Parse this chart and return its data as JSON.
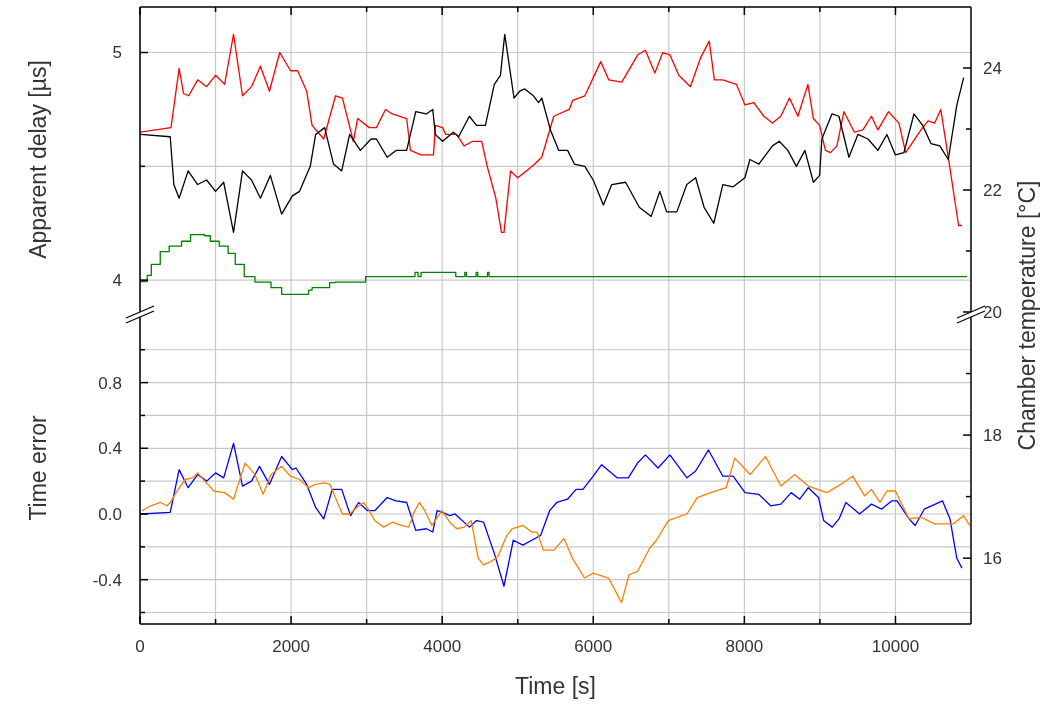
{
  "chart_data": [
    {
      "type": "line",
      "ylabel": "Apparent delay [µs]",
      "y2label": "Chamber temperature [°C]",
      "xlim": [
        0,
        11000
      ],
      "xticks": [
        0,
        {
          "value": 1000,
          "label": null
        },
        2000,
        {
          "value": 3000,
          "label": null
        },
        4000,
        {
          "value": 5000,
          "label": null
        },
        6000,
        {
          "value": 7000,
          "label": null
        },
        8000,
        {
          "value": 9000,
          "label": null
        },
        10000
      ],
      "ylim": [
        3.86,
        5.2
      ],
      "yticks": [
        4,
        {
          "value": 4.5,
          "label": null
        },
        5
      ],
      "y2lim": [
        20,
        25
      ],
      "y2ticks": [
        20,
        {
          "value": 21,
          "label": null
        },
        22,
        {
          "value": 23,
          "label": null
        },
        24
      ],
      "grid": true,
      "tick_labels": "y",
      "series": [
        {
          "color": "#ff0000",
          "x": [
            7,
            410,
            518,
            576,
            645,
            763,
            882,
            1000,
            1120,
            1238,
            1357,
            1476,
            1594,
            1713,
            1850,
            1993,
            2087,
            2206,
            2278,
            2432,
            2588,
            2680,
            2824,
            2881,
            3035,
            3129,
            3250,
            3341,
            3530,
            3580,
            3720,
            3885,
            3910,
            4005,
            4047,
            4190,
            4290,
            4405,
            4523,
            4596,
            4710,
            4785,
            4818,
            4905,
            5000,
            5116,
            5225,
            5318,
            5477,
            5682,
            5728,
            5888,
            6099,
            6205,
            6377,
            6589,
            6690,
            6815,
            6920,
            7014,
            7132,
            7286,
            7424,
            7535,
            7603,
            7715,
            7896,
            8007,
            8126,
            8258,
            8372,
            8483,
            8597,
            8709,
            8841,
            8914,
            8996,
            9073,
            9140,
            9225,
            9318,
            9457,
            9569,
            9682,
            9768,
            9908,
            10046,
            10135,
            10338,
            10431,
            10519,
            10600,
            10722,
            10836,
            10880
          ],
          "values": [
            4.65,
            4.67,
            4.93,
            4.82,
            4.81,
            4.88,
            4.85,
            4.9,
            4.86,
            5.08,
            4.81,
            4.85,
            4.94,
            4.83,
            5.0,
            4.92,
            4.92,
            4.83,
            4.68,
            4.62,
            4.81,
            4.8,
            4.61,
            4.71,
            4.67,
            4.67,
            4.75,
            4.73,
            4.71,
            4.57,
            4.55,
            4.55,
            4.68,
            4.67,
            4.64,
            4.64,
            4.59,
            4.61,
            4.61,
            4.5,
            4.36,
            4.21,
            4.21,
            4.48,
            4.45,
            4.48,
            4.51,
            4.54,
            4.72,
            4.75,
            4.79,
            4.81,
            4.96,
            4.88,
            4.87,
            4.99,
            5.01,
            4.91,
            5.0,
            4.99,
            4.9,
            4.85,
            4.98,
            5.05,
            4.88,
            4.88,
            4.86,
            4.77,
            4.78,
            4.72,
            4.69,
            4.72,
            4.8,
            4.72,
            4.86,
            4.71,
            4.68,
            4.57,
            4.56,
            4.59,
            4.74,
            4.65,
            4.66,
            4.72,
            4.66,
            4.74,
            4.69,
            4.56,
            4.66,
            4.7,
            4.69,
            4.75,
            4.49,
            4.24,
            4.24
          ]
        },
        {
          "color": "#000000",
          "x": [
            7,
            400,
            448,
            518,
            637,
            763,
            882,
            1000,
            1108,
            1238,
            1357,
            1476,
            1594,
            1725,
            1875,
            2017,
            2112,
            2254,
            2325,
            2444,
            2562,
            2670,
            2775,
            2917,
            3058,
            3130,
            3272,
            3390,
            3530,
            3650,
            3790,
            3875,
            3910,
            4005,
            4147,
            4218,
            4360,
            4454,
            4572,
            4690,
            4771,
            4828,
            4951,
            5026,
            5093,
            5208,
            5276,
            5318,
            5433,
            5543,
            5660,
            5750,
            5888,
            5999,
            6134,
            6245,
            6428,
            6609,
            6767,
            6881,
            6971,
            7106,
            7238,
            7355,
            7467,
            7595,
            7715,
            7852,
            8007,
            8073,
            8192,
            8372,
            8462,
            8576,
            8689,
            8801,
            8914,
            8996,
            9026,
            9159,
            9252,
            9384,
            9503,
            9636,
            9768,
            9887,
            9999,
            10112,
            10245,
            10360,
            10470,
            10587,
            10699,
            10813,
            10903
          ],
          "values": [
            4.64,
            4.63,
            4.42,
            4.36,
            4.48,
            4.42,
            4.44,
            4.39,
            4.43,
            4.21,
            4.48,
            4.44,
            4.36,
            4.46,
            4.29,
            4.37,
            4.39,
            4.5,
            4.64,
            4.67,
            4.51,
            4.48,
            4.64,
            4.57,
            4.62,
            4.62,
            4.54,
            4.57,
            4.57,
            4.74,
            4.73,
            4.75,
            4.64,
            4.61,
            4.65,
            4.63,
            4.72,
            4.68,
            4.68,
            4.86,
            4.9,
            5.08,
            4.8,
            4.83,
            4.84,
            4.81,
            4.78,
            4.8,
            4.66,
            4.57,
            4.57,
            4.51,
            4.5,
            4.44,
            4.33,
            4.42,
            4.43,
            4.32,
            4.28,
            4.39,
            4.3,
            4.3,
            4.42,
            4.45,
            4.32,
            4.25,
            4.42,
            4.41,
            4.45,
            4.53,
            4.51,
            4.59,
            4.61,
            4.57,
            4.5,
            4.57,
            4.43,
            4.46,
            4.62,
            4.73,
            4.72,
            4.54,
            4.64,
            4.62,
            4.57,
            4.64,
            4.55,
            4.56,
            4.73,
            4.68,
            4.6,
            4.59,
            4.53,
            4.77,
            4.89
          ]
        },
        {
          "type": "step",
          "axis": "y2",
          "color": "#008000",
          "x": [
            7,
            95,
            150,
            268,
            386,
            550,
            669,
            855,
            930,
            1048,
            1167,
            1261,
            1380,
            1522,
            1734,
            1875,
            2232,
            2278,
            2510,
            2585,
            2987,
            3640,
            3680,
            3720,
            4180,
            4300,
            4320,
            4450,
            4470,
            4600,
            4620,
            10950
          ],
          "values": [
            20.5,
            20.6,
            20.78,
            20.99,
            21.08,
            21.16,
            21.27,
            21.25,
            21.16,
            21.08,
            20.96,
            20.78,
            20.58,
            20.49,
            20.4,
            20.29,
            20.36,
            20.4,
            20.48,
            20.49,
            20.58,
            20.65,
            20.58,
            20.65,
            20.58,
            20.65,
            20.58,
            20.65,
            20.58,
            20.65,
            20.58,
            20.58
          ]
        }
      ]
    },
    {
      "type": "line",
      "ylabel": "Time error",
      "xlabel": "Time [s]",
      "xlim": [
        0,
        11000
      ],
      "xticks": [
        0,
        {
          "value": 1000,
          "label": null
        },
        2000,
        {
          "value": 3000,
          "label": null
        },
        4000,
        {
          "value": 5000,
          "label": null
        },
        6000,
        {
          "value": 7000,
          "label": null
        },
        8000,
        {
          "value": 9000,
          "label": null
        },
        10000
      ],
      "ylim": [
        -0.67,
        1.23
      ],
      "yticks": [
        {
          "value": -0.6,
          "label": null
        },
        -0.4,
        {
          "value": -0.2,
          "label": null
        },
        {
          "value": 0,
          "label": "0.0"
        },
        {
          "value": 0.2,
          "label": null
        },
        0.4,
        {
          "value": 0.6,
          "label": null
        },
        0.8,
        {
          "value": 1.0,
          "label": null
        }
      ],
      "y2lim": [
        14.93,
        20
      ],
      "y2ticks": [
        16,
        {
          "value": 17,
          "label": null
        },
        18,
        {
          "value": 19,
          "label": null
        }
      ],
      "grid": true,
      "series": [
        {
          "color": "#0000ff",
          "x": [
            7,
            400,
            518,
            637,
            763,
            882,
            1000,
            1108,
            1238,
            1357,
            1476,
            1582,
            1713,
            1875,
            2017,
            2065,
            2207,
            2325,
            2432,
            2545,
            2670,
            2787,
            2893,
            3012,
            3107,
            3272,
            3390,
            3530,
            3650,
            3790,
            3875,
            3933,
            4005,
            4100,
            4170,
            4360,
            4454,
            4548,
            4690,
            4818,
            4941,
            5068,
            5186,
            5304,
            5422,
            5517,
            5659,
            5772,
            5863,
            5999,
            6111,
            6315,
            6464,
            6586,
            6690,
            6857,
            7014,
            7240,
            7353,
            7525,
            7715,
            7851,
            8009,
            8190,
            8348,
            8484,
            8620,
            8733,
            8846,
            8982,
            9050,
            9163,
            9253,
            9344,
            9525,
            9683,
            9818,
            9954,
            10022,
            10180,
            10261,
            10383,
            10622,
            10722,
            10812,
            10880
          ],
          "values": [
            0.0,
            0.01,
            0.27,
            0.16,
            0.24,
            0.2,
            0.25,
            0.22,
            0.43,
            0.17,
            0.2,
            0.29,
            0.18,
            0.35,
            0.27,
            0.28,
            0.18,
            0.04,
            -0.03,
            0.15,
            0.15,
            -0.01,
            0.07,
            0.02,
            0.02,
            0.1,
            0.08,
            0.07,
            -0.1,
            -0.09,
            -0.11,
            0.02,
            0.01,
            -0.01,
            0.0,
            -0.08,
            -0.04,
            -0.05,
            -0.24,
            -0.44,
            -0.16,
            -0.19,
            -0.16,
            -0.13,
            0.02,
            0.07,
            0.09,
            0.15,
            0.15,
            0.23,
            0.3,
            0.22,
            0.22,
            0.31,
            0.36,
            0.28,
            0.36,
            0.22,
            0.26,
            0.39,
            0.23,
            0.23,
            0.13,
            0.12,
            0.05,
            0.06,
            0.13,
            0.09,
            0.16,
            0.1,
            -0.04,
            -0.08,
            -0.03,
            0.07,
            0.0,
            0.06,
            0.03,
            0.08,
            0.08,
            -0.03,
            -0.07,
            0.03,
            0.08,
            -0.03,
            -0.27,
            -0.33
          ]
        },
        {
          "color": "#ff8000",
          "x": [
            25,
            143,
            271,
            357,
            400,
            505,
            599,
            694,
            763,
            858,
            977,
            1120,
            1238,
            1299,
            1393,
            1521,
            1630,
            1734,
            1875,
            1993,
            2112,
            2230,
            2325,
            2444,
            2515,
            2585,
            2680,
            2775,
            2870,
            2957,
            3036,
            3107,
            3225,
            3343,
            3461,
            3556,
            3627,
            3698,
            3770,
            3863,
            3997,
            4100,
            4194,
            4290,
            4384,
            4478,
            4548,
            4643,
            4737,
            4856,
            4927,
            5069,
            5186,
            5257,
            5340,
            5478,
            5611,
            5725,
            5884,
            5999,
            6202,
            6374,
            6473,
            6586,
            6745,
            6835,
            6993,
            7240,
            7376,
            7556,
            7760,
            7873,
            8077,
            8280,
            8484,
            8665,
            8846,
            9094,
            9275,
            9433,
            9592,
            9682,
            9795,
            9886,
            9999,
            10180,
            10338,
            10519,
            10767,
            10902,
            10983
          ],
          "values": [
            0.02,
            0.05,
            0.07,
            0.05,
            0.07,
            0.15,
            0.21,
            0.22,
            0.25,
            0.2,
            0.14,
            0.13,
            0.09,
            0.18,
            0.31,
            0.24,
            0.12,
            0.24,
            0.29,
            0.23,
            0.21,
            0.16,
            0.18,
            0.19,
            0.18,
            0.1,
            0.0,
            0.0,
            0.04,
            0.07,
            0.02,
            -0.04,
            -0.08,
            -0.05,
            -0.07,
            -0.08,
            0.01,
            0.07,
            0.02,
            -0.07,
            0.02,
            -0.05,
            -0.09,
            -0.08,
            -0.04,
            -0.27,
            -0.31,
            -0.29,
            -0.26,
            -0.13,
            -0.09,
            -0.07,
            -0.11,
            -0.11,
            -0.22,
            -0.22,
            -0.15,
            -0.27,
            -0.39,
            -0.36,
            -0.39,
            -0.54,
            -0.37,
            -0.35,
            -0.21,
            -0.16,
            -0.04,
            0.0,
            0.1,
            0.13,
            0.16,
            0.34,
            0.24,
            0.35,
            0.17,
            0.24,
            0.17,
            0.13,
            0.18,
            0.23,
            0.11,
            0.15,
            0.07,
            0.14,
            0.14,
            -0.03,
            -0.02,
            -0.06,
            -0.06,
            -0.01,
            -0.07
          ]
        }
      ]
    }
  ]
}
